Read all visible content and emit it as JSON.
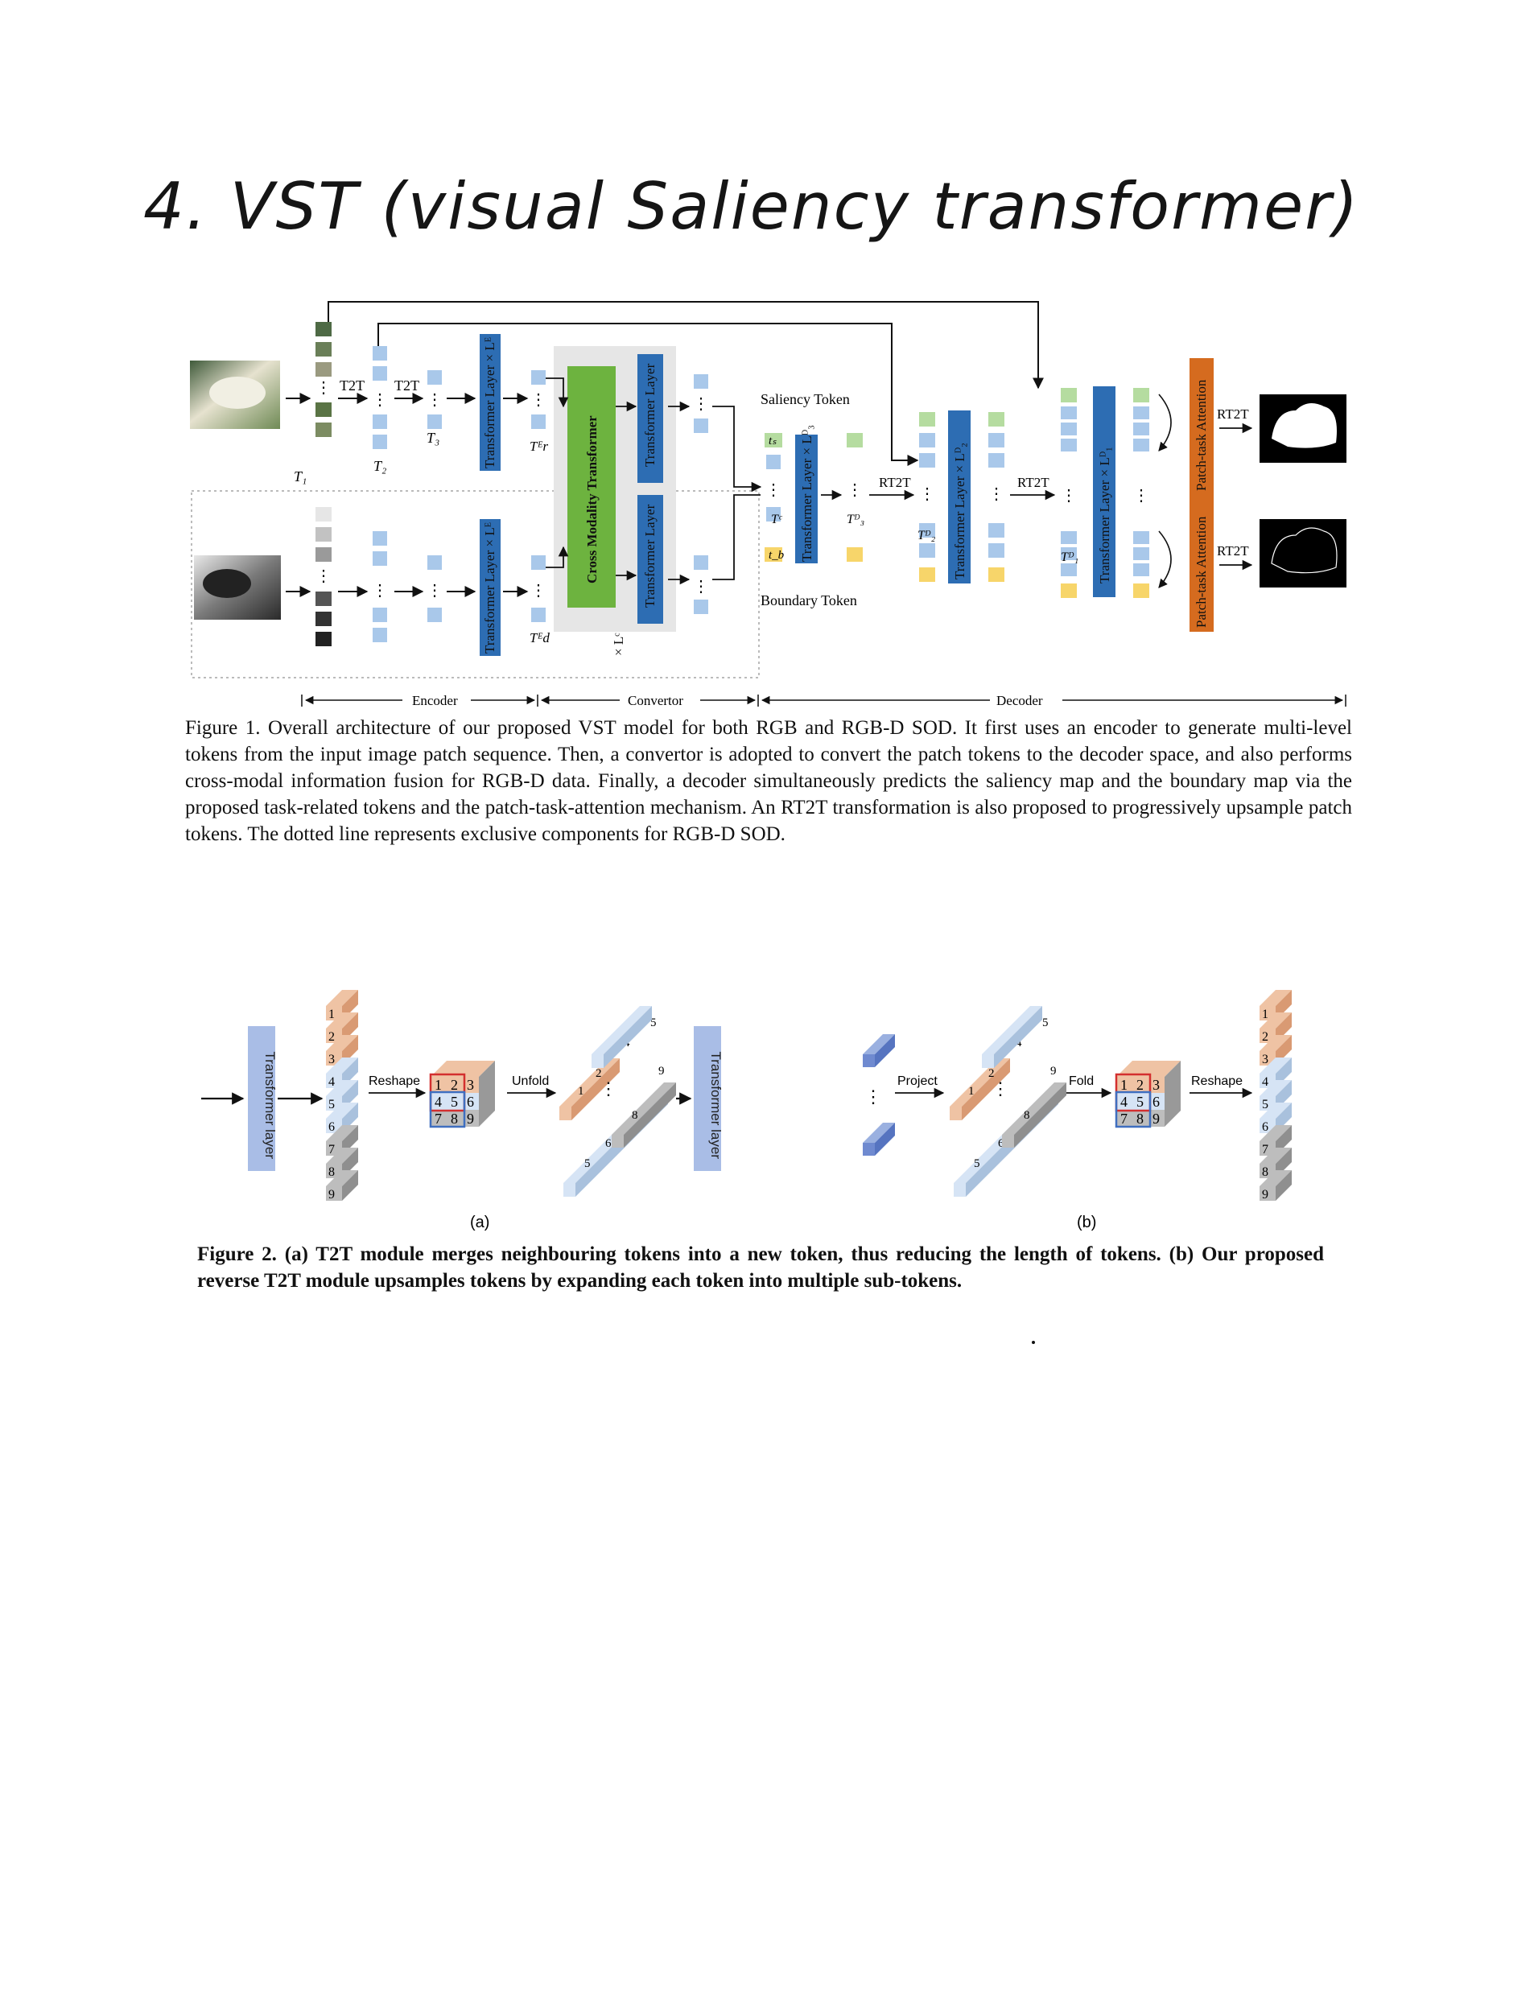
{
  "heading": "4. VST (visual Saliency transformer)",
  "figure1": {
    "caption": "Figure 1. Overall architecture of our proposed VST model for both RGB and RGB-D SOD. It first uses an encoder to generate multi-level tokens from the input image patch sequence. Then, a convertor is adopted to convert the patch tokens to the decoder space, and also performs cross-modal information fusion for RGB-D data. Finally, a decoder simultaneously predicts the saliency map and the boundary map via the proposed task-related tokens and the patch-task-attention mechanism. An RT2T transformation is also proposed to progressively upsample patch tokens. The dotted line represents exclusive components for RGB-D SOD.",
    "labels": {
      "t2t": "T2T",
      "t1": "T₁",
      "t2": "T₂",
      "t3": "T₃",
      "enc_layer": "Transformer Layer × Lᴱ",
      "tr_e": "Tᴱr",
      "td_e": "Tᴱd",
      "cross_modal": "Cross Modality Transformer",
      "times_lc": "× Lᶜ",
      "conv_layer": "Transformer Layer",
      "saliency_token": "Saliency Token",
      "boundary_token": "Boundary Token",
      "ts": "tₛ",
      "tb": "t_b",
      "tc": "Tᶜ",
      "dec_layer3": "Transformer Layer × Lᴰ₃",
      "t3d": "Tᴰ₃",
      "rt2t": "RT2T",
      "dec_layer2": "Transformer Layer × Lᴰ₂",
      "t2d": "Tᴰ₂",
      "dec_layer1": "Transformer Layer × Lᴰ₁",
      "t1d": "Tᴰ₁",
      "pta": "Patch-task Attention",
      "encoder": "Encoder",
      "convertor": "Convertor",
      "decoder": "Decoder"
    }
  },
  "figure2": {
    "caption": "Figure 2. (a) T2T module merges neighbouring tokens into a new token, thus reducing the length of tokens. (b) Our proposed reverse T2T module upsamples tokens by expanding each token into multiple sub-tokens.",
    "labels": {
      "transformer_layer": "Transformer layer",
      "reshape": "Reshape",
      "unfold": "Unfold",
      "project": "Project",
      "fold": "Fold",
      "sub_a": "(a)",
      "sub_b": "(b)",
      "n1": "1",
      "n2": "2",
      "n3": "3",
      "n4": "4",
      "n5": "5",
      "n6": "6",
      "n7": "7",
      "n8": "8",
      "n9": "9"
    }
  },
  "colors": {
    "enc_blue": "#2d6db3",
    "green": "#6db33f",
    "orange": "#d56b1f",
    "light_blue": "#a9c8ea",
    "token_green": "#b5dca0",
    "token_yellow": "#f7d56a",
    "peach": "#efc3a4",
    "grey_block": "#bdbdbd",
    "pale_blue": "#d6e4f5",
    "layer_lavender": "#a9bde6"
  }
}
